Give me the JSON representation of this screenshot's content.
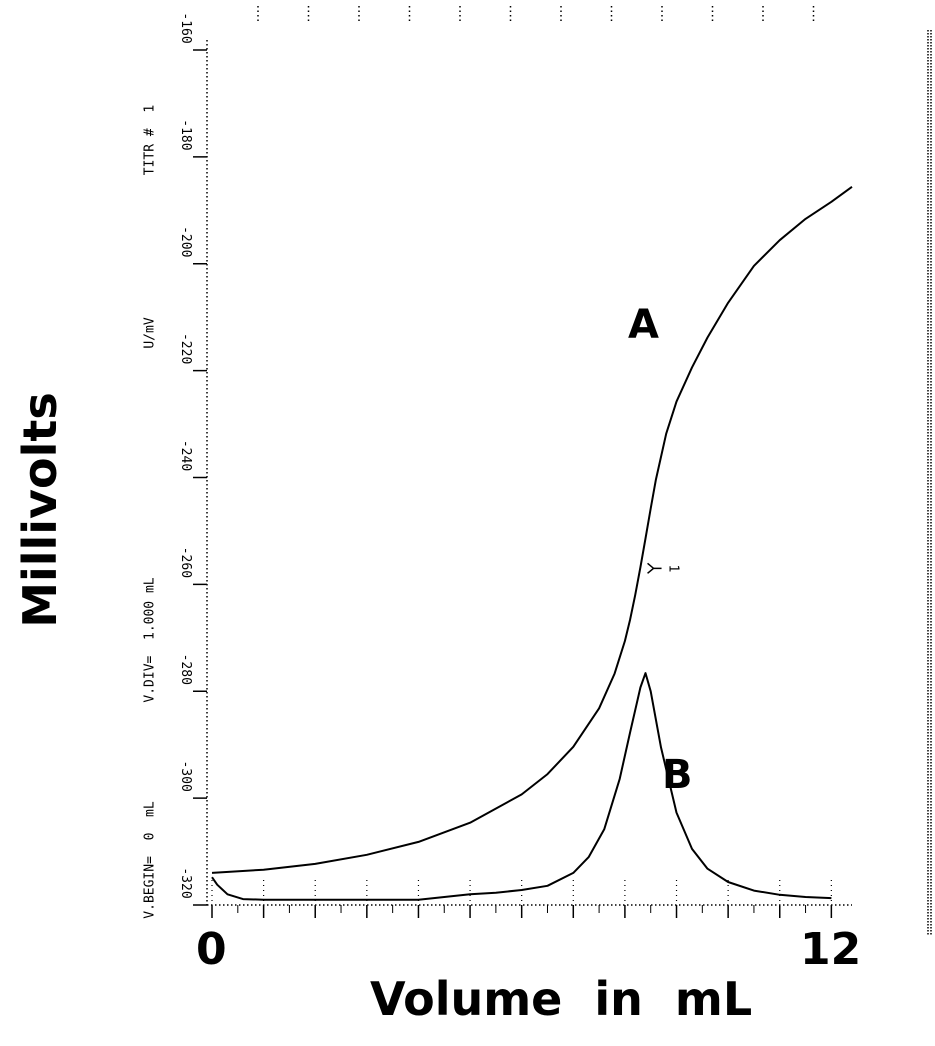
{
  "chart_data": {
    "type": "line",
    "ylabel": "Millivolts",
    "xlabel": "Volume  in  mL",
    "xlim": [
      0,
      12.4
    ],
    "ylim": [
      -320,
      -160
    ],
    "x_tick_labels": [
      "0",
      "12"
    ],
    "y_ticks": [
      -160,
      -180,
      -200,
      -220,
      -240,
      -260,
      -280,
      -300,
      -320
    ],
    "y_tick_labels": [
      "-160",
      "-180",
      "-200",
      "-220",
      "-240",
      "-260",
      "-280",
      "-300",
      "-320"
    ],
    "header_texts": [
      "V.BEGIN=  0  mL",
      "V.DIV=  1.000 mL",
      "U/mV",
      "TITR #  1"
    ],
    "endpoint_marker": {
      "label": "1",
      "x": 8.4,
      "y": -257
    },
    "series": [
      {
        "name": "A",
        "x": [
          0,
          1,
          2,
          3,
          4,
          5,
          6,
          6.5,
          7,
          7.5,
          7.8,
          8.0,
          8.1,
          8.2,
          8.3,
          8.4,
          8.5,
          8.6,
          8.8,
          9.0,
          9.3,
          9.6,
          10.0,
          10.5,
          11.0,
          11.5,
          12.0,
          12.4
        ],
        "y": [
          -314,
          -313.4,
          -312.3,
          -310.6,
          -308.2,
          -304.6,
          -299.3,
          -295.5,
          -290.4,
          -283.2,
          -276.7,
          -270.6,
          -266.6,
          -262,
          -256.8,
          -251.4,
          -245.8,
          -240.4,
          -231.8,
          -225.8,
          -219.4,
          -213.8,
          -207.3,
          -200.4,
          -195.6,
          -191.6,
          -188.4,
          -185.6
        ]
      },
      {
        "name": "B",
        "x": [
          0,
          0.1,
          0.3,
          0.6,
          1,
          2,
          3,
          4,
          5,
          5.5,
          6,
          6.5,
          7,
          7.3,
          7.6,
          7.9,
          8.1,
          8.3,
          8.4,
          8.5,
          8.7,
          9.0,
          9.3,
          9.6,
          10.0,
          10.5,
          11.0,
          11.5,
          12.0
        ],
        "y": [
          -314.8,
          -316.2,
          -318,
          -318.9,
          -319,
          -319,
          -319,
          -319,
          -318,
          -317.7,
          -317.2,
          -316.4,
          -314,
          -311,
          -305.8,
          -296.4,
          -287.7,
          -279.3,
          -276.6,
          -280,
          -290.5,
          -302.7,
          -309.5,
          -313.2,
          -315.7,
          -317.3,
          -318.1,
          -318.5,
          -318.7
        ]
      }
    ]
  }
}
